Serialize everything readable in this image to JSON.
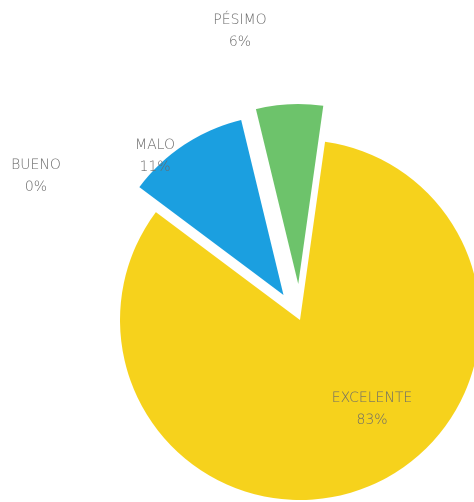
{
  "chart_data": {
    "type": "pie",
    "categories": [
      "EXCELENTE",
      "BUENO",
      "MALO",
      "PÉSIMO"
    ],
    "values": [
      83,
      0,
      11,
      6
    ],
    "value_labels": [
      "83%",
      "0%",
      "11%",
      "6%"
    ],
    "colors": [
      "#f6d21c",
      "#9e9e9e",
      "#1b9fe0",
      "#6dc36b"
    ]
  }
}
